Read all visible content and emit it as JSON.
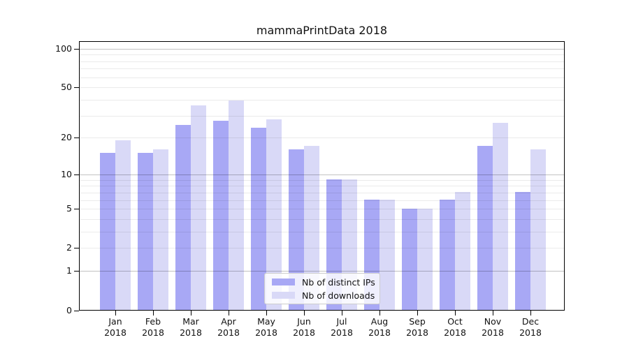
{
  "title": "mammaPrintData 2018",
  "chart_data": {
    "type": "bar",
    "title": "mammaPrintData 2018",
    "categories": [
      "Jan 2018",
      "Feb 2018",
      "Mar 2018",
      "Apr 2018",
      "May 2018",
      "Jun 2018",
      "Jul 2018",
      "Aug 2018",
      "Sep 2018",
      "Oct 2018",
      "Nov 2018",
      "Dec 2018"
    ],
    "series": [
      {
        "name": "Nb of distinct IPs",
        "color": "#a8a8f5",
        "values": [
          15,
          15,
          25,
          27,
          24,
          16,
          9,
          6,
          5,
          6,
          17,
          7
        ]
      },
      {
        "name": "Nb of downloads",
        "color": "#d9d9f7",
        "values": [
          19,
          16,
          36,
          39,
          28,
          17,
          9,
          6,
          5,
          7,
          26,
          16
        ]
      }
    ],
    "yscale": "log1p",
    "yticks": [
      0,
      1,
      2,
      5,
      10,
      20,
      50,
      100
    ],
    "ytick_labels": [
      "0",
      "1",
      "2",
      "5",
      "10",
      "20",
      "50",
      "100"
    ],
    "minor_gridlines": [
      2,
      3,
      4,
      5,
      6,
      7,
      8,
      9,
      20,
      30,
      40,
      50,
      60,
      70,
      80,
      90
    ],
    "major_gridlines": [
      1,
      10,
      100
    ],
    "ylim": [
      0,
      115
    ],
    "grid": true,
    "legend_position": "inside-bottom-center",
    "legend_items": [
      "Nb of distinct IPs",
      "Nb of downloads"
    ]
  },
  "colors": {
    "ips_bar": "#a8a8f5",
    "downloads_bar": "#d9d9f7",
    "axis": "#000000",
    "legend_border": "#cccccc"
  }
}
